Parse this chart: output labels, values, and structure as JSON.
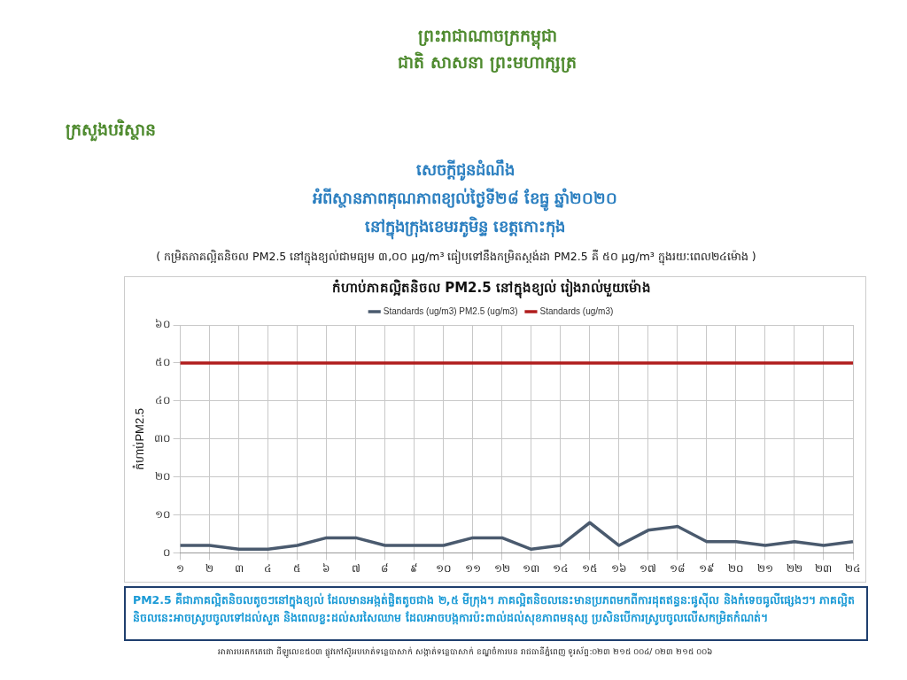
{
  "chart_data": {
    "type": "line",
    "title": "កំហាប់ភាគល្អិតនិចល PM2.5 នៅក្នុងខ្យល់ រៀងរាល់មួយម៉ោង",
    "ylabel": "កំហាប់PM2.5",
    "categories": [
      "១",
      "២",
      "៣",
      "៤",
      "៥",
      "៦",
      "៧",
      "៨",
      "៩",
      "១០",
      "១១",
      "១២",
      "១៣",
      "១៤",
      "១៥",
      "១៦",
      "១៧",
      "១៨",
      "១៩",
      "២០",
      "២១",
      "២២",
      "២៣",
      "២៤"
    ],
    "series": [
      {
        "name": "Standards (ug/m3) PM2.5 (ug/m3)",
        "color": "#4a5a6e",
        "values": [
          2,
          2,
          1,
          1,
          2,
          4,
          4,
          2,
          2,
          2,
          4,
          4,
          1,
          2,
          8,
          2,
          6,
          7,
          3,
          3,
          2,
          3,
          2,
          3
        ]
      },
      {
        "name": "Standards (ug/m3)",
        "color": "#b01c1c",
        "values": [
          50,
          50,
          50,
          50,
          50,
          50,
          50,
          50,
          50,
          50,
          50,
          50,
          50,
          50,
          50,
          50,
          50,
          50,
          50,
          50,
          50,
          50,
          50,
          50
        ]
      }
    ],
    "ylim": [
      0,
      60
    ],
    "yticks": [
      {
        "value": 0,
        "label": "០"
      },
      {
        "value": 10,
        "label": "១០"
      },
      {
        "value": 20,
        "label": "២០"
      },
      {
        "value": 30,
        "label": "៣០"
      },
      {
        "value": 40,
        "label": "៤០"
      },
      {
        "value": 50,
        "label": "៥០"
      },
      {
        "value": 60,
        "label": "៦០"
      }
    ],
    "grid": true,
    "legend": "top",
    "marker": "none",
    "line_style": "solid",
    "annotations": [
      "ព្រះរាជាណាចក្រកម្ពុជា",
      "ជាតិ សាសនា ព្រះមហាក្សត្រ",
      "ក្រសួងបរិស្ថាន",
      "សេចក្ដីជូនដំណឹង",
      "អំពីស្ថានភាពគុណភាពខ្យល់ថ្ងៃទី២៨ ខែធ្នូ ឆ្នាំ២០២០",
      "នៅក្នុងក្រុងខេមរភូមិន្ទ ខេត្តកោះកុង",
      "( កម្រិតភាគល្អិតនិចល PM2.5 នៅក្នុងខ្យល់ជាមធ្យម ៣,០០ µg/m³ ធៀបទៅនឹងកម្រិតស្តង់ដា PM2.5 គឺ ៥០ µg/m³ ក្នុងរយៈពេល២៤ម៉ោង )",
      "PM2.5 គឺជាភាគល្អិតនិចលតូចៗនៅក្នុងខ្យល់ ដែលមានអង្កត់ផ្ចិតតូចជាង ២,៥ មីក្រុង។ ភាគល្អិតនិចលនេះមានប្រភពមកពីការដុតឥន្ធនៈផូស៊ីល និងកំទេចធូលីផ្សេងៗ។ ភាគល្អិតនិចលនេះអាចស្រូបចូលទៅដល់សួត និងពេលខ្លះដល់សរសៃឈាម ដែលអាចបង្កការប៉ះពាល់ដល់សុខភាពមនុស្ស ប្រសិនបើការស្រូបចូលលើសកម្រិតកំណត់។",
      "អាគារមរតកតេជោ ដីឡូលេខ៥០៣ ផ្លូវកៅស៊ូអមមាត់ទន្លេបាសាក់ សង្កាត់ទន្លេបាសាក់ ខណ្ឌចំការមន រាជធានីភ្នំពេញ ទូរស័ព្ទ:០២៣ ២១៥ ០០៤/ ០២៣ ២១៥ ០០៦"
    ]
  }
}
